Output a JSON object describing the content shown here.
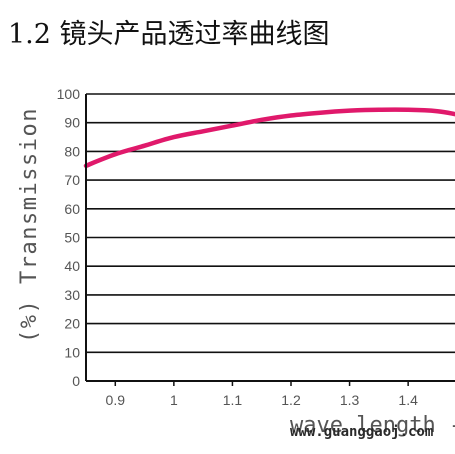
{
  "heading": "1.2 镜头产品透过率曲线图",
  "watermark": "www.guanggaoj.com",
  "chart_data": {
    "type": "line",
    "ylabel": "(%) Transmission",
    "xlabel": "wave length -",
    "ylim": [
      0,
      100
    ],
    "xlim": [
      0.85,
      1.48
    ],
    "y_ticks": [
      0,
      10,
      20,
      30,
      40,
      50,
      60,
      70,
      80,
      90,
      100
    ],
    "x_ticks": [
      "0.9",
      "1",
      "1.1",
      "1.2",
      "1.3",
      "1.4"
    ],
    "x_tick_values": [
      0.9,
      1.0,
      1.1,
      1.2,
      1.3,
      1.4
    ],
    "grid": "horizontal",
    "line_color": "#e0196b",
    "axis_color": "#111111",
    "label_color": "#555555",
    "series": [
      {
        "x": [
          0.85,
          0.9,
          0.95,
          1.0,
          1.05,
          1.1,
          1.15,
          1.2,
          1.25,
          1.3,
          1.35,
          1.4,
          1.45,
          1.48
        ],
        "values": [
          75,
          79,
          82,
          85,
          87,
          89,
          91,
          92.5,
          93.5,
          94.2,
          94.5,
          94.5,
          94,
          93
        ]
      }
    ]
  }
}
